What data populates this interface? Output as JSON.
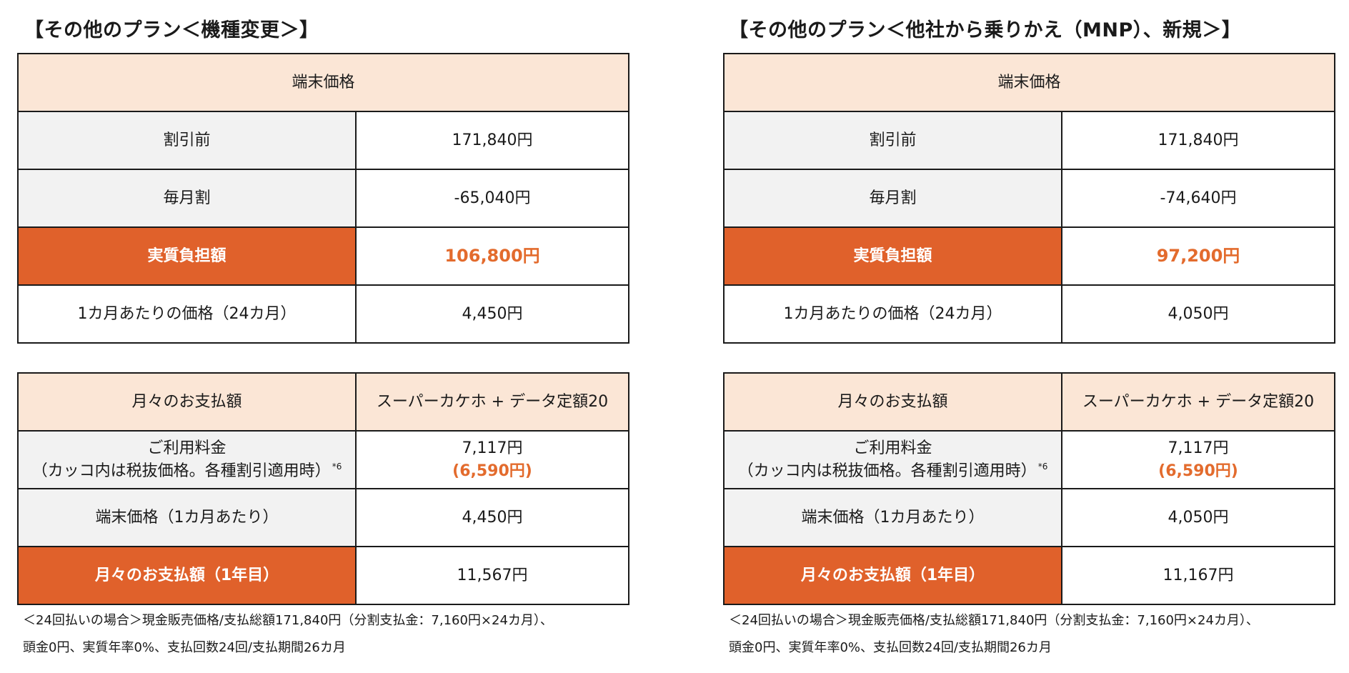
{
  "plans": [
    {
      "title": "【その他のプラン＜機種変更＞】",
      "device_price": {
        "header": "端末価格",
        "before_discount_label": "割引前",
        "before_discount_value": "171,840円",
        "monthly_discount_label": "毎月割",
        "monthly_discount_value": "-65,040円",
        "effective_label": "実質負担額",
        "effective_value": "106,800円",
        "per_month_label": "1カ月あたりの価格（24カ月）",
        "per_month_value": "4,450円"
      },
      "monthly_payment": {
        "header_label": "月々のお支払額",
        "header_plan": "スーパーカケホ + データ定額20",
        "fee_label_line1": "ご利用料金",
        "fee_label_line2": "（カッコ内は税抜価格。各種割引適用時）",
        "fee_note": "*6",
        "fee_value": "7,117円",
        "fee_value_excl_tax": "(6,590円)",
        "device_label": "端末価格（1カ月あたり）",
        "device_value": "4,450円",
        "total_label": "月々のお支払額（1年目）",
        "total_value": "11,567円"
      },
      "footnote_line1": "＜24回払いの場合＞現金販売価格/支払総額171,840円（分割支払金：7,160円×24カ月）、",
      "footnote_line2": "頭金0円、実質年率0%、支払回数24回/支払期間26カ月"
    },
    {
      "title": "【その他のプラン＜他社から乗りかえ（MNP）、新規＞】",
      "device_price": {
        "header": "端末価格",
        "before_discount_label": "割引前",
        "before_discount_value": "171,840円",
        "monthly_discount_label": "毎月割",
        "monthly_discount_value": "-74,640円",
        "effective_label": "実質負担額",
        "effective_value": "97,200円",
        "per_month_label": "1カ月あたりの価格（24カ月）",
        "per_month_value": "4,050円"
      },
      "monthly_payment": {
        "header_label": "月々のお支払額",
        "header_plan": "スーパーカケホ + データ定額20",
        "fee_label_line1": "ご利用料金",
        "fee_label_line2": "（カッコ内は税抜価格。各種割引適用時）",
        "fee_note": "*6",
        "fee_value": "7,117円",
        "fee_value_excl_tax": "(6,590円)",
        "device_label": "端末価格（1カ月あたり）",
        "device_value": "4,050円",
        "total_label": "月々のお支払額（1年目）",
        "total_value": "11,167円"
      },
      "footnote_line1": "＜24回払いの場合＞現金販売価格/支払総額171,840円（分割支払金：7,160円×24カ月）、",
      "footnote_line2": "頭金0円、実質年率0%、支払回数24回/支払期間26カ月"
    }
  ],
  "colors": {
    "header_bg": "#fbe6d6",
    "label_bg": "#f2f2f2",
    "accent_bg": "#e0612b",
    "accent_text": "#e36b2d",
    "border": "#1a1a1a"
  }
}
